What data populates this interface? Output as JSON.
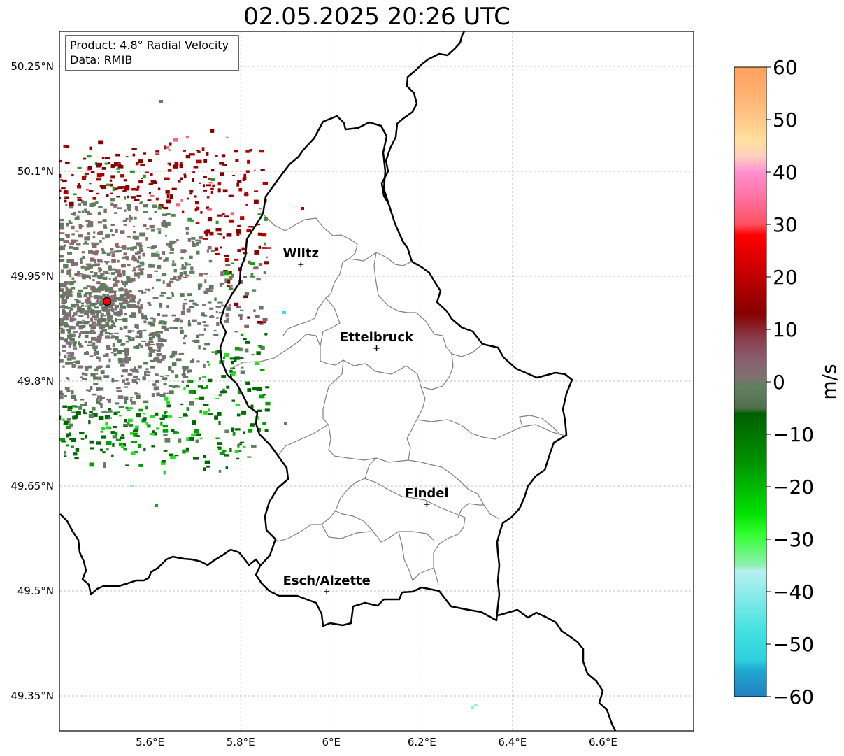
{
  "title": "02.05.2025 20:26 UTC",
  "info_box": {
    "product": "Product: 4.8° Radial Velocity",
    "source": "Data: RMIB"
  },
  "lon_ticks": [
    {
      "value": 5.6,
      "label": "5.6°E"
    },
    {
      "value": 5.8,
      "label": "5.8°E"
    },
    {
      "value": 6.0,
      "label": "6°E"
    },
    {
      "value": 6.2,
      "label": "6.2°E"
    },
    {
      "value": 6.4,
      "label": "6.4°E"
    },
    {
      "value": 6.6,
      "label": "6.6°E"
    }
  ],
  "lat_ticks": [
    {
      "value": 50.25,
      "label": "50.25°N"
    },
    {
      "value": 50.1,
      "label": "50.1°N"
    },
    {
      "value": 49.95,
      "label": "49.95°N"
    },
    {
      "value": 49.8,
      "label": "49.8°N"
    },
    {
      "value": 49.65,
      "label": "49.65°N"
    },
    {
      "value": 49.5,
      "label": "49.5°N"
    },
    {
      "value": 49.35,
      "label": "49.35°N"
    }
  ],
  "map_extent": {
    "lon": [
      5.4,
      6.8
    ],
    "lat": [
      49.3,
      50.3
    ]
  },
  "cities": [
    {
      "name": "Wiltz",
      "lon": 5.933,
      "lat": 49.967
    },
    {
      "name": "Ettelbruck",
      "lon": 6.1,
      "lat": 49.847
    },
    {
      "name": "Findel",
      "lon": 6.211,
      "lat": 49.624
    },
    {
      "name": "Esch/Alzette",
      "lon": 5.99,
      "lat": 49.499
    }
  ],
  "radar_site": {
    "lon": 5.505,
    "lat": 49.914,
    "color": "#ff0000"
  },
  "colorbar": {
    "label": "m/s",
    "min": -60,
    "max": 60,
    "ticks": [
      {
        "value": 60,
        "label": "60"
      },
      {
        "value": 50,
        "label": "50"
      },
      {
        "value": 40,
        "label": "40"
      },
      {
        "value": 30,
        "label": "30"
      },
      {
        "value": 20,
        "label": "20"
      },
      {
        "value": 10,
        "label": "10"
      },
      {
        "value": 0,
        "label": "0"
      },
      {
        "value": -10,
        "label": "−10"
      },
      {
        "value": -20,
        "label": "−20"
      },
      {
        "value": -30,
        "label": "−30"
      },
      {
        "value": -40,
        "label": "−40"
      },
      {
        "value": -50,
        "label": "−50"
      },
      {
        "value": -60,
        "label": "−60"
      }
    ],
    "stops": [
      {
        "value": 60,
        "color": "#ffa060"
      },
      {
        "value": 55,
        "color": "#ffb070"
      },
      {
        "value": 50,
        "color": "#ffc888"
      },
      {
        "value": 46,
        "color": "#ffe0a0"
      },
      {
        "value": 43,
        "color": "#ffd0c0"
      },
      {
        "value": 40,
        "color": "#ff90d0"
      },
      {
        "value": 35,
        "color": "#ff70a0"
      },
      {
        "value": 30,
        "color": "#ff5060"
      },
      {
        "value": 28,
        "color": "#ff0000"
      },
      {
        "value": 20,
        "color": "#c00000"
      },
      {
        "value": 13,
        "color": "#880000"
      },
      {
        "value": 8,
        "color": "#884050"
      },
      {
        "value": 4,
        "color": "#8a6070"
      },
      {
        "value": 1,
        "color": "#807070"
      },
      {
        "value": -1,
        "color": "#608060"
      },
      {
        "value": -5,
        "color": "#507050"
      },
      {
        "value": -6,
        "color": "#006000"
      },
      {
        "value": -15,
        "color": "#009000"
      },
      {
        "value": -25,
        "color": "#00e000"
      },
      {
        "value": -29,
        "color": "#30ff30"
      },
      {
        "value": -35,
        "color": "#90f0b0"
      },
      {
        "value": -36,
        "color": "#b8f0f0"
      },
      {
        "value": -48,
        "color": "#40e0e0"
      },
      {
        "value": -53,
        "color": "#30d0e0"
      },
      {
        "value": -55,
        "color": "#20a8d0"
      },
      {
        "value": -60,
        "color": "#2080c0"
      }
    ]
  }
}
